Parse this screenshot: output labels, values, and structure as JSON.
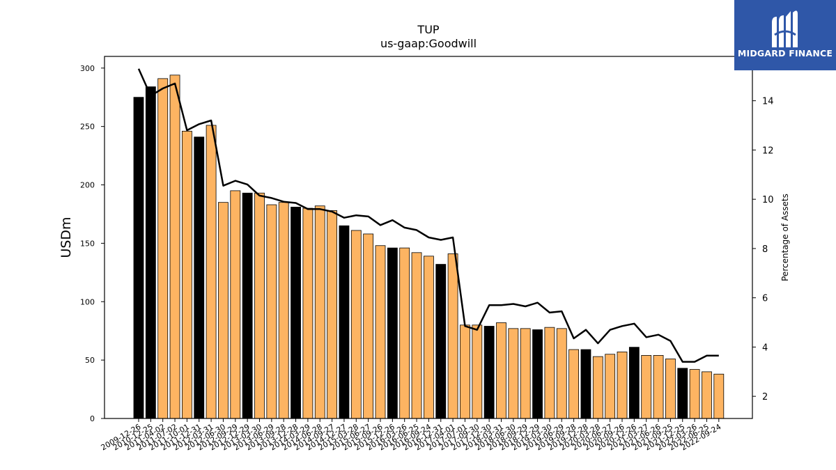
{
  "chart_data": {
    "type": "bar",
    "title": "TUP",
    "subtitle": "us-gaap:Goodwill",
    "ylabel": "USDm",
    "ylabel_right": "Percentage of Assets",
    "ylim": [
      0,
      310
    ],
    "yticks": [
      0,
      50,
      100,
      150,
      200,
      250,
      300
    ],
    "ylim_right": [
      1.1,
      15.8
    ],
    "yticks_right": [
      2,
      4,
      6,
      8,
      10,
      12,
      14
    ],
    "colors": {
      "annual": "#000000",
      "quarter": "#fdb462",
      "line": "#000000"
    },
    "categories": [
      "2009-12-26",
      "2010-12-25",
      "2011-04-02",
      "2011-07-02",
      "2011-10-01",
      "2011-12-31",
      "2012-03-31",
      "2012-06-30",
      "2012-09-29",
      "2012-12-29",
      "2013-03-30",
      "2013-06-29",
      "2013-09-28",
      "2013-12-28",
      "2014-03-29",
      "2014-06-28",
      "2014-09-27",
      "2014-12-27",
      "2015-03-28",
      "2015-06-27",
      "2015-09-26",
      "2015-12-26",
      "2016-03-26",
      "2016-06-25",
      "2016-09-24",
      "2016-12-31",
      "2017-04-01",
      "2017-07-01",
      "2017-09-30",
      "2017-12-30",
      "2018-03-31",
      "2018-06-30",
      "2018-09-29",
      "2018-12-29",
      "2019-03-30",
      "2019-06-29",
      "2019-09-28",
      "2019-12-28",
      "2020-03-28",
      "2020-06-27",
      "2020-09-26",
      "2020-12-26",
      "2021-03-27",
      "2021-06-26",
      "2021-09-25",
      "2021-12-25",
      "2022-03-26",
      "2022-06-25",
      "2022-09-24"
    ],
    "values": [
      275,
      284,
      291,
      294,
      246,
      241,
      251,
      185,
      195,
      193,
      193,
      183,
      185,
      181,
      180,
      182,
      178,
      165,
      161,
      158,
      148,
      146,
      146,
      142,
      139,
      132,
      141,
      80,
      80,
      79,
      82,
      77,
      77,
      76,
      78,
      77,
      59,
      59,
      53,
      55,
      57,
      61,
      54,
      54,
      51,
      43,
      42,
      40,
      38
    ],
    "annual": [
      true,
      true,
      false,
      false,
      false,
      true,
      false,
      false,
      false,
      true,
      false,
      false,
      false,
      true,
      false,
      false,
      false,
      true,
      false,
      false,
      false,
      true,
      false,
      false,
      false,
      true,
      false,
      false,
      false,
      true,
      false,
      false,
      false,
      true,
      false,
      false,
      false,
      true,
      false,
      false,
      false,
      true,
      false,
      false,
      false,
      true,
      false,
      false,
      false
    ],
    "percent_of_assets": [
      15.3,
      14.2,
      14.5,
      14.7,
      12.8,
      13.05,
      13.2,
      10.55,
      10.75,
      10.6,
      10.15,
      10.05,
      9.9,
      9.85,
      9.6,
      9.6,
      9.5,
      9.25,
      9.35,
      9.3,
      8.95,
      9.15,
      8.85,
      8.75,
      8.45,
      8.35,
      8.45,
      4.85,
      4.7,
      5.7,
      5.7,
      5.75,
      5.65,
      5.8,
      5.4,
      5.45,
      4.35,
      4.7,
      4.15,
      4.7,
      4.85,
      4.95,
      4.4,
      4.5,
      4.25,
      3.4,
      3.4,
      3.65,
      3.65
    ]
  },
  "logo": {
    "text": "MIDGARD FINANCE"
  }
}
